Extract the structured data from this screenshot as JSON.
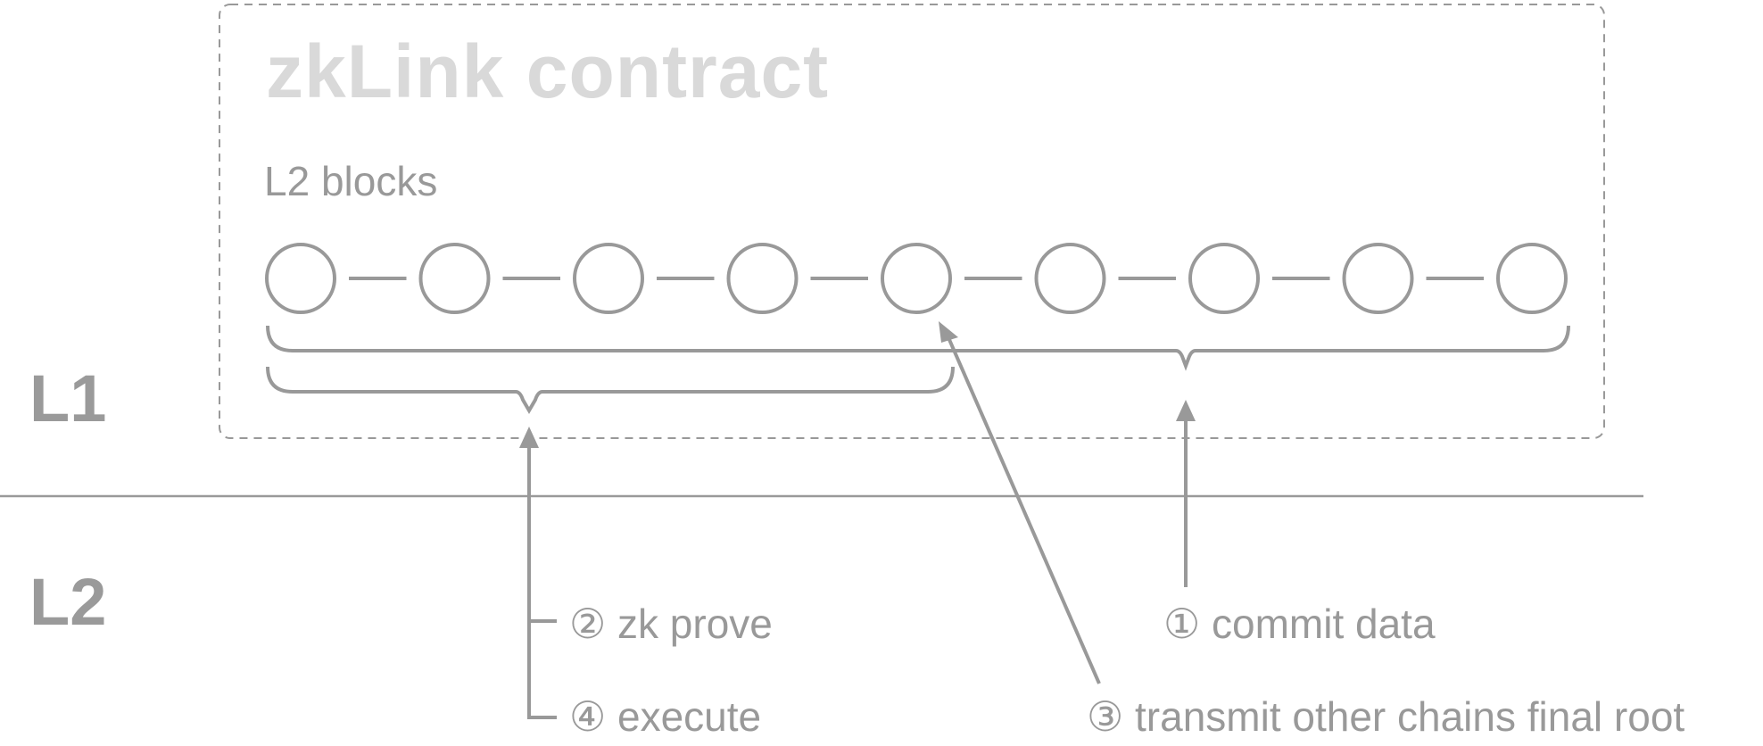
{
  "diagram": {
    "contract_title": "zkLink contract",
    "blocks_label": "L2 blocks",
    "block_count": 9,
    "layers": {
      "l1": "L1",
      "l2": "L2"
    },
    "steps": {
      "commit": "① commit data",
      "prove": "② zk prove",
      "transmit": "③ transmit other chains final root",
      "execute": "④ execute"
    },
    "colors": {
      "stroke": "#999999",
      "title": "#d9d9d9",
      "text": "#999999"
    }
  }
}
